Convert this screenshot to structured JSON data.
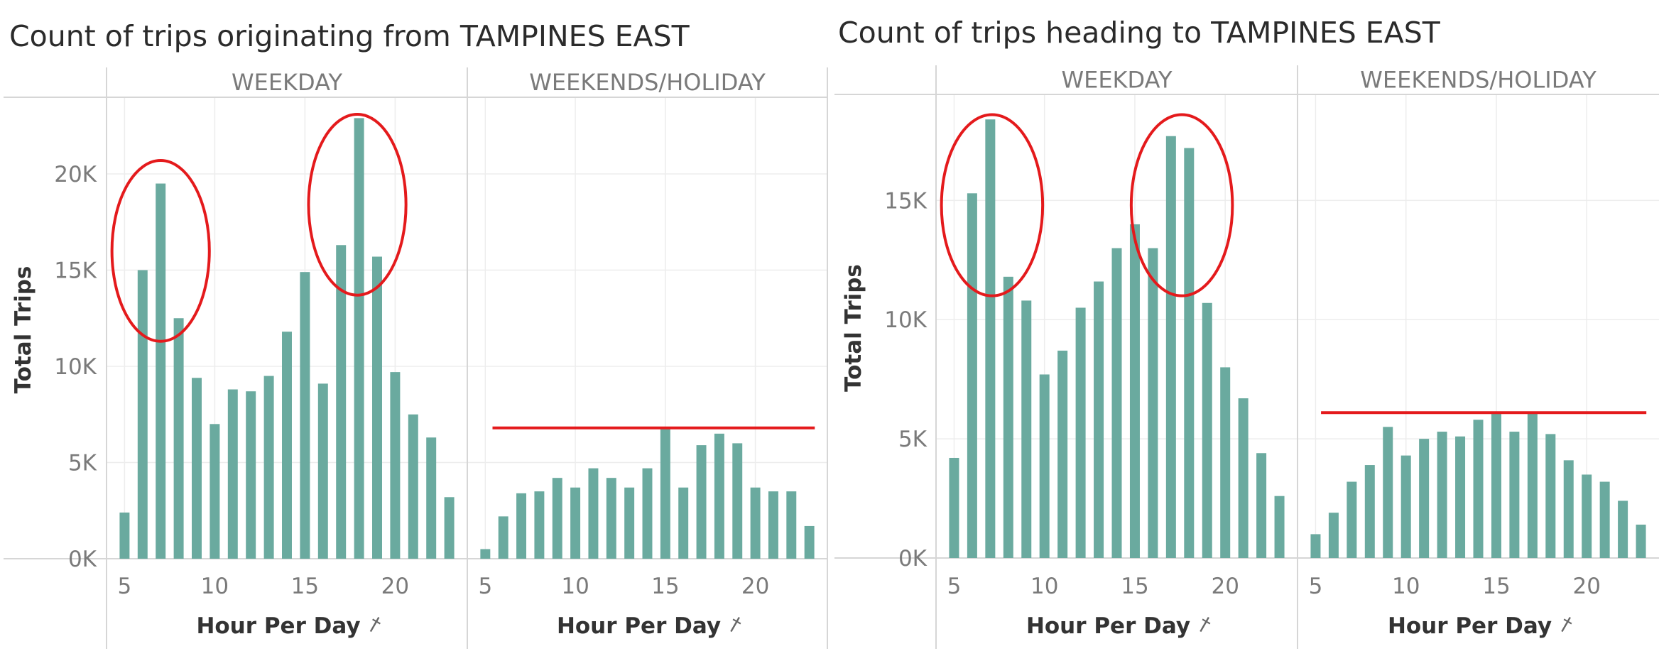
{
  "chart_data": [
    {
      "type": "bar",
      "title": "Count of trips originating from TAMPINES EAST",
      "ylabel": "Total Trips",
      "xlabel": "Hour Per Day",
      "xlabel_icon": "pin-icon",
      "ylim": [
        0,
        23800
      ],
      "yticks": [
        0,
        5000,
        10000,
        15000,
        20000
      ],
      "ytick_labels": [
        "0K",
        "5K",
        "10K",
        "15K",
        "20K"
      ],
      "xlim": [
        4,
        24
      ],
      "xticks": [
        5,
        10,
        15,
        20
      ],
      "xtick_labels": [
        "5",
        "10",
        "15",
        "20"
      ],
      "bar_color": "#6aaa9f",
      "annotation_color": "#e41a1c",
      "grid": true,
      "panels": [
        {
          "name": "WEEKDAY",
          "x": [
            5,
            6,
            7,
            8,
            9,
            10,
            11,
            12,
            13,
            14,
            15,
            16,
            17,
            18,
            19,
            20,
            21,
            22,
            23
          ],
          "values": [
            2400,
            15000,
            19500,
            12500,
            9400,
            7000,
            8800,
            8700,
            9500,
            11800,
            14900,
            9100,
            16300,
            22900,
            15700,
            9700,
            7500,
            6300,
            3200
          ],
          "annotations": [
            {
              "type": "ellipse",
              "x_center": 7,
              "x_halfwidth": 2.7,
              "y_center": 16000,
              "y_halfheight": 4700
            },
            {
              "type": "ellipse",
              "x_center": 17.9,
              "x_halfwidth": 2.7,
              "y_center": 18400,
              "y_halfheight": 4700
            }
          ]
        },
        {
          "name": "WEEKENDS/HOLIDAY",
          "x": [
            5,
            6,
            7,
            8,
            9,
            10,
            11,
            12,
            13,
            14,
            15,
            16,
            17,
            18,
            19,
            20,
            21,
            22,
            23
          ],
          "values": [
            500,
            2200,
            3400,
            3500,
            4200,
            3700,
            4700,
            4200,
            3700,
            4700,
            6800,
            3700,
            5900,
            6500,
            6000,
            3700,
            3500,
            3500,
            1700
          ],
          "annotations": [
            {
              "type": "hline",
              "y": 6800,
              "x_start": 5.4,
              "x_end": 23.3
            }
          ]
        }
      ]
    },
    {
      "type": "bar",
      "title": "Count of trips heading to TAMPINES EAST",
      "ylabel": "Total Trips",
      "xlabel": "Hour Per Day",
      "xlabel_icon": "pin-icon",
      "ylim": [
        0,
        19300
      ],
      "yticks": [
        0,
        5000,
        10000,
        15000
      ],
      "ytick_labels": [
        "0K",
        "5K",
        "10K",
        "15K"
      ],
      "xlim": [
        4,
        24
      ],
      "xticks": [
        5,
        10,
        15,
        20
      ],
      "xtick_labels": [
        "5",
        "10",
        "15",
        "20"
      ],
      "bar_color": "#6aaa9f",
      "annotation_color": "#e41a1c",
      "grid": true,
      "panels": [
        {
          "name": "WEEKDAY",
          "x": [
            5,
            6,
            7,
            8,
            9,
            10,
            11,
            12,
            13,
            14,
            15,
            16,
            17,
            18,
            19,
            20,
            21,
            22,
            23
          ],
          "values": [
            4200,
            15300,
            18400,
            11800,
            10800,
            7700,
            8700,
            10500,
            11600,
            13000,
            14000,
            13000,
            17700,
            17200,
            10700,
            8000,
            6700,
            4400,
            2600
          ],
          "annotations": [
            {
              "type": "ellipse",
              "x_center": 7.1,
              "x_halfwidth": 2.8,
              "y_center": 14800,
              "y_halfheight": 3800
            },
            {
              "type": "ellipse",
              "x_center": 17.6,
              "x_halfwidth": 2.8,
              "y_center": 14800,
              "y_halfheight": 3800
            }
          ]
        },
        {
          "name": "WEEKENDS/HOLIDAY",
          "x": [
            5,
            6,
            7,
            8,
            9,
            10,
            11,
            12,
            13,
            14,
            15,
            16,
            17,
            18,
            19,
            20,
            21,
            22,
            23
          ],
          "values": [
            1000,
            1900,
            3200,
            3900,
            5500,
            4300,
            5000,
            5300,
            5100,
            5800,
            6100,
            5300,
            6100,
            5200,
            4100,
            3500,
            3200,
            2400,
            1400
          ],
          "annotations": [
            {
              "type": "hline",
              "y": 6100,
              "x_start": 5.3,
              "x_end": 23.3
            }
          ]
        }
      ]
    }
  ]
}
